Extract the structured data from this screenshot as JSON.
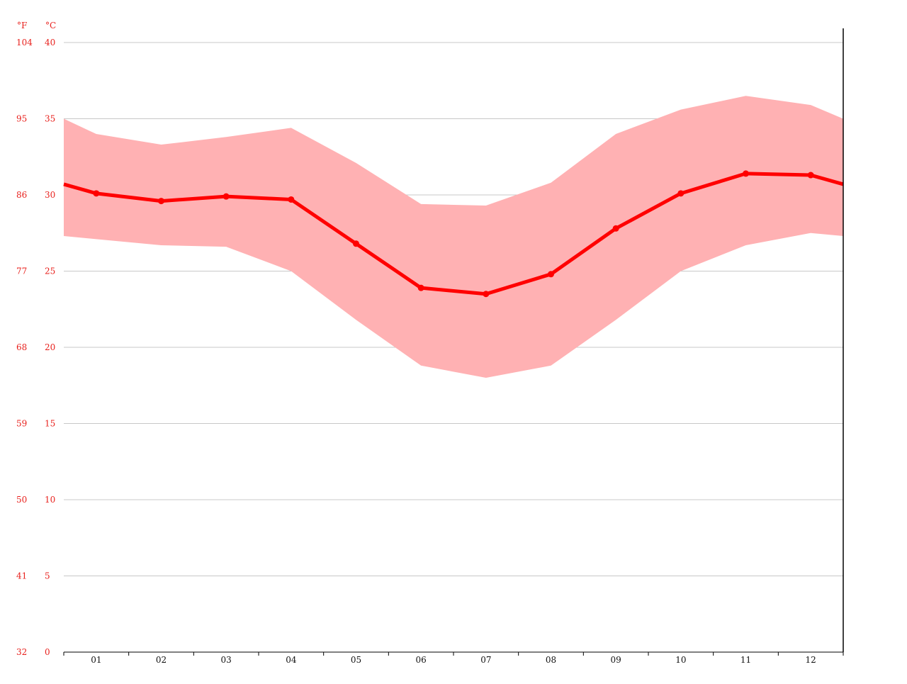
{
  "chart_data": {
    "type": "line",
    "categories": [
      "01",
      "02",
      "03",
      "04",
      "05",
      "06",
      "07",
      "08",
      "09",
      "10",
      "11",
      "12"
    ],
    "series": [
      {
        "values": [
          30.1,
          29.6,
          29.9,
          29.7,
          26.8,
          23.9,
          23.5,
          24.8,
          27.8,
          30.1,
          31.4,
          31.3
        ]
      }
    ],
    "band": {
      "low": [
        27.1,
        26.7,
        26.6,
        25.0,
        21.8,
        18.8,
        18.0,
        18.8,
        21.8,
        25.0,
        26.7,
        27.5
      ],
      "high": [
        34.0,
        33.3,
        33.8,
        34.4,
        32.1,
        29.4,
        29.3,
        30.8,
        34.0,
        35.6,
        36.5,
        35.9
      ]
    },
    "edges": {
      "left": {
        "value": 30.7,
        "low": 27.3,
        "high": 35.0
      },
      "right": {
        "value": 30.7,
        "low": 27.3,
        "high": 35.0
      }
    },
    "y_celsius": {
      "unit": "°C",
      "ticks": [
        0,
        5,
        10,
        15,
        20,
        25,
        30,
        35,
        40
      ],
      "ylim": [
        0,
        40
      ]
    },
    "y_fahrenheit": {
      "unit": "°F",
      "ticks": [
        "32",
        "41",
        "50",
        "59",
        "68",
        "77",
        "86",
        "95",
        "104"
      ]
    },
    "grid": true,
    "colors": {
      "line": "#ff0000",
      "band": "#ffb1b3",
      "axis_labels": "#e8211d",
      "grid": "#c8c8c8"
    }
  }
}
